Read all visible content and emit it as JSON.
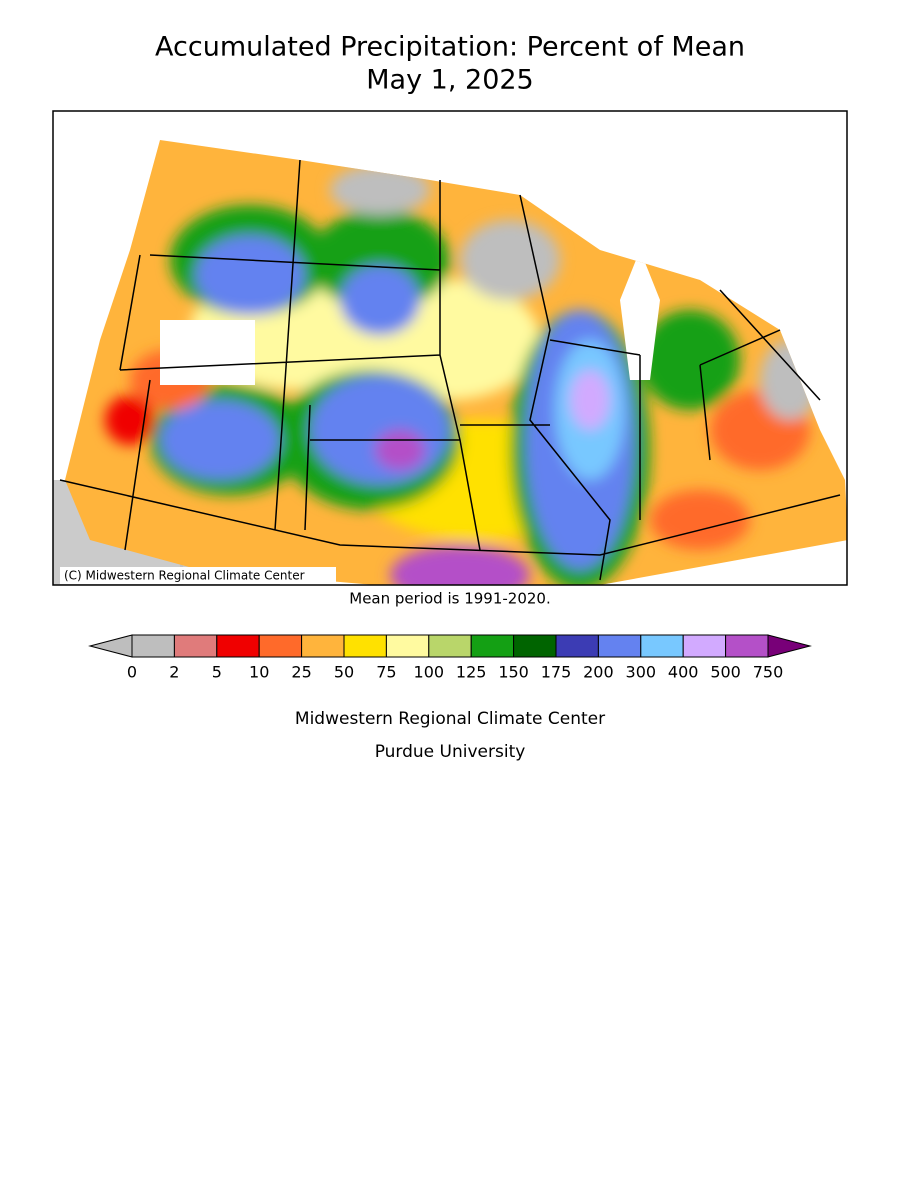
{
  "header": {
    "title_lines": [
      "Accumulated Precipitation: Percent of Mean",
      "May 1, 2025"
    ]
  },
  "map": {
    "credit": "(C) Midwestern Regional Climate Center",
    "note": "Mean period is 1991-2020."
  },
  "legend": {
    "ticks": [
      0,
      2,
      5,
      10,
      25,
      50,
      75,
      100,
      125,
      150,
      175,
      200,
      300,
      400,
      500,
      750
    ],
    "colors": [
      "#bebebe",
      "#e07b7b",
      "#f00000",
      "#ff6a2a",
      "#ffb43c",
      "#ffe100",
      "#fffaa0",
      "#b9d66a",
      "#14a014",
      "#006400",
      "#3c3cb4",
      "#6482f0",
      "#78c8ff",
      "#d2aaff",
      "#b450c8"
    ],
    "under_color": "#bebebe",
    "over_color": "#780078"
  },
  "footer": {
    "lines": [
      "Midwestern Regional Climate Center",
      "Purdue University"
    ]
  }
}
